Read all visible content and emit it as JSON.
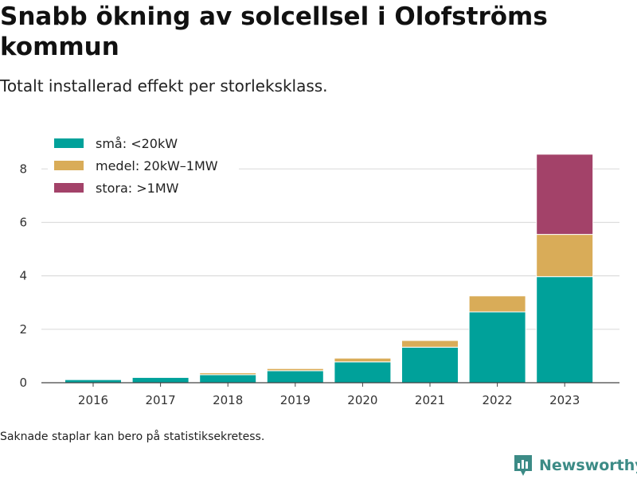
{
  "title": "Snabb ökning av solcellsel i Olofströms kommun",
  "subtitle": "Totalt installerad effekt per storleksklass.",
  "footnote": "Saknade staplar kan bero på statistiksekretess.",
  "brand": "Newsworthy",
  "chart_data": {
    "type": "bar",
    "stacked": true,
    "categories": [
      "2016",
      "2017",
      "2018",
      "2019",
      "2020",
      "2021",
      "2022",
      "2023"
    ],
    "series": [
      {
        "name": "små: <20kW",
        "color": "#00a19a",
        "values": [
          0.12,
          0.2,
          0.3,
          0.45,
          0.78,
          1.33,
          2.65,
          3.97
        ]
      },
      {
        "name": "medel: 20kW–1MW",
        "color": "#d9ac58",
        "values": [
          0.01,
          0.02,
          0.07,
          0.08,
          0.14,
          0.25,
          0.6,
          1.58
        ]
      },
      {
        "name": "stora: >1MW",
        "color": "#a34269",
        "values": [
          0,
          0,
          0,
          0,
          0,
          0,
          0,
          3.0
        ]
      }
    ],
    "y_ticks": [
      0,
      2,
      4,
      6,
      8
    ],
    "ylim": [
      0,
      9.2
    ],
    "grid": true,
    "legend_position": "top-left"
  }
}
